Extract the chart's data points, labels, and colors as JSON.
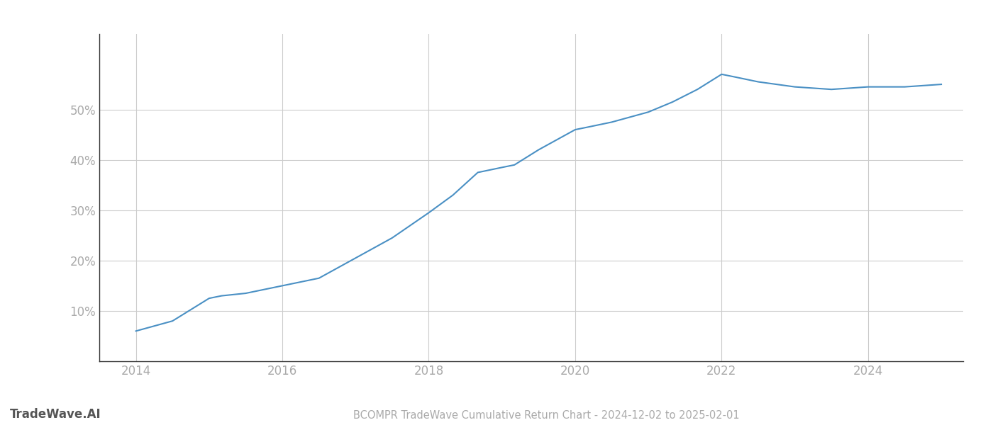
{
  "title": "BCOMPR TradeWave Cumulative Return Chart - 2024-12-02 to 2025-02-01",
  "watermark": "TradeWave.AI",
  "line_color": "#4a90c4",
  "background_color": "#ffffff",
  "grid_color": "#cccccc",
  "data_x": [
    2014.0,
    2014.5,
    2015.0,
    2015.17,
    2015.5,
    2016.0,
    2016.5,
    2017.0,
    2017.5,
    2018.0,
    2018.33,
    2018.67,
    2019.0,
    2019.17,
    2019.5,
    2020.0,
    2020.17,
    2020.5,
    2020.75,
    2021.0,
    2021.33,
    2021.67,
    2022.0,
    2022.17,
    2022.5,
    2022.75,
    2023.0,
    2023.5,
    2024.0,
    2024.5,
    2025.0
  ],
  "data_y": [
    6.0,
    8.0,
    12.5,
    13.0,
    13.5,
    15.0,
    16.5,
    20.5,
    24.5,
    29.5,
    33.0,
    37.5,
    38.5,
    39.0,
    42.0,
    46.0,
    46.5,
    47.5,
    48.5,
    49.5,
    51.5,
    54.0,
    57.0,
    56.5,
    55.5,
    55.0,
    54.5,
    54.0,
    54.5,
    54.5,
    55.0
  ],
  "ylim": [
    0,
    65
  ],
  "xlim": [
    2013.5,
    2025.3
  ],
  "yticks": [
    10,
    20,
    30,
    40,
    50
  ],
  "xticks": [
    2014,
    2016,
    2018,
    2020,
    2022,
    2024
  ],
  "line_width": 1.5,
  "title_fontsize": 10.5,
  "watermark_fontsize": 12,
  "tick_fontsize": 12,
  "tick_color": "#aaaaaa",
  "spine_color": "#333333"
}
